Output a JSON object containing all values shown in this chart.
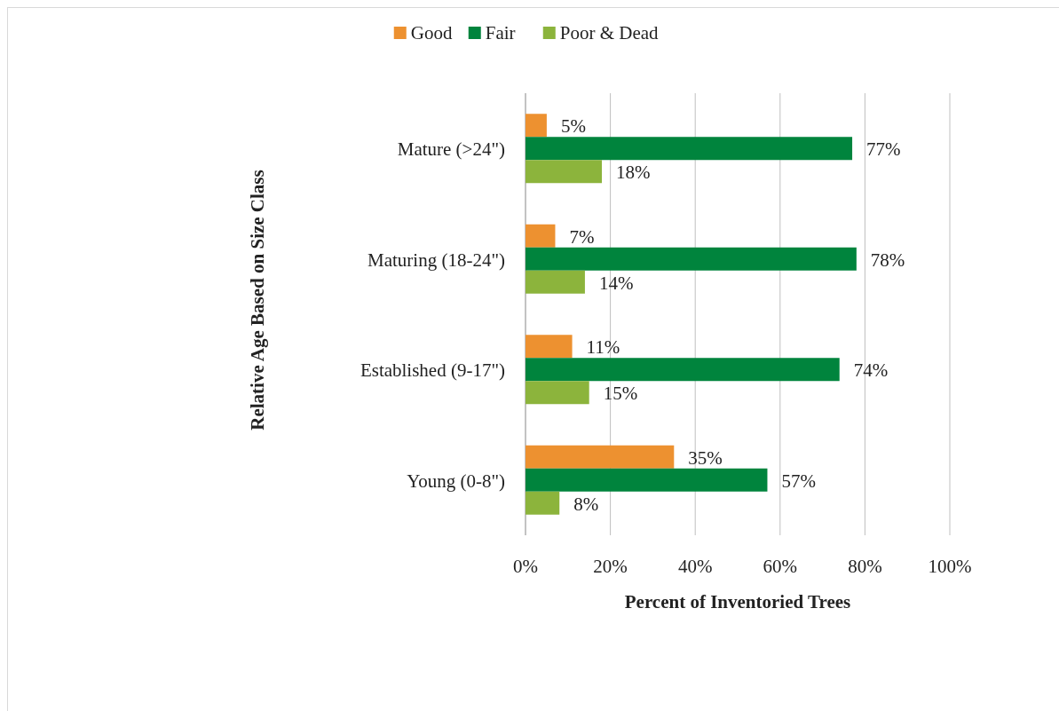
{
  "chart_data": {
    "type": "bar",
    "orientation": "horizontal",
    "xlabel": "Percent of Inventoried Trees",
    "ylabel": "Relative Age Based on Size Class",
    "categories": [
      "Mature (>24\")",
      "Maturing (18-24\")",
      "Established (9-17\")",
      "Young (0-8\")"
    ],
    "series": [
      {
        "name": "Good",
        "color": "#ed9130",
        "values": [
          5,
          7,
          11,
          35
        ],
        "value_labels": [
          "5%",
          "7%",
          "11%",
          "35%"
        ]
      },
      {
        "name": "Fair",
        "color": "#00843d",
        "values": [
          77,
          78,
          74,
          57
        ],
        "value_labels": [
          "77%",
          "78%",
          "74%",
          "57%"
        ]
      },
      {
        "name": "Poor & Dead",
        "color": "#8cb43c",
        "values": [
          18,
          14,
          15,
          8
        ],
        "value_labels": [
          "18%",
          "14%",
          "15%",
          "8%"
        ]
      }
    ],
    "xlim": [
      0,
      100
    ],
    "xticks": [
      {
        "value": 0,
        "label": "0%"
      },
      {
        "value": 20,
        "label": "20%"
      },
      {
        "value": 40,
        "label": "40%"
      },
      {
        "value": 60,
        "label": "60%"
      },
      {
        "value": 80,
        "label": "80%"
      },
      {
        "value": 100,
        "label": "100%"
      }
    ],
    "grid": "x",
    "legend": "top"
  }
}
